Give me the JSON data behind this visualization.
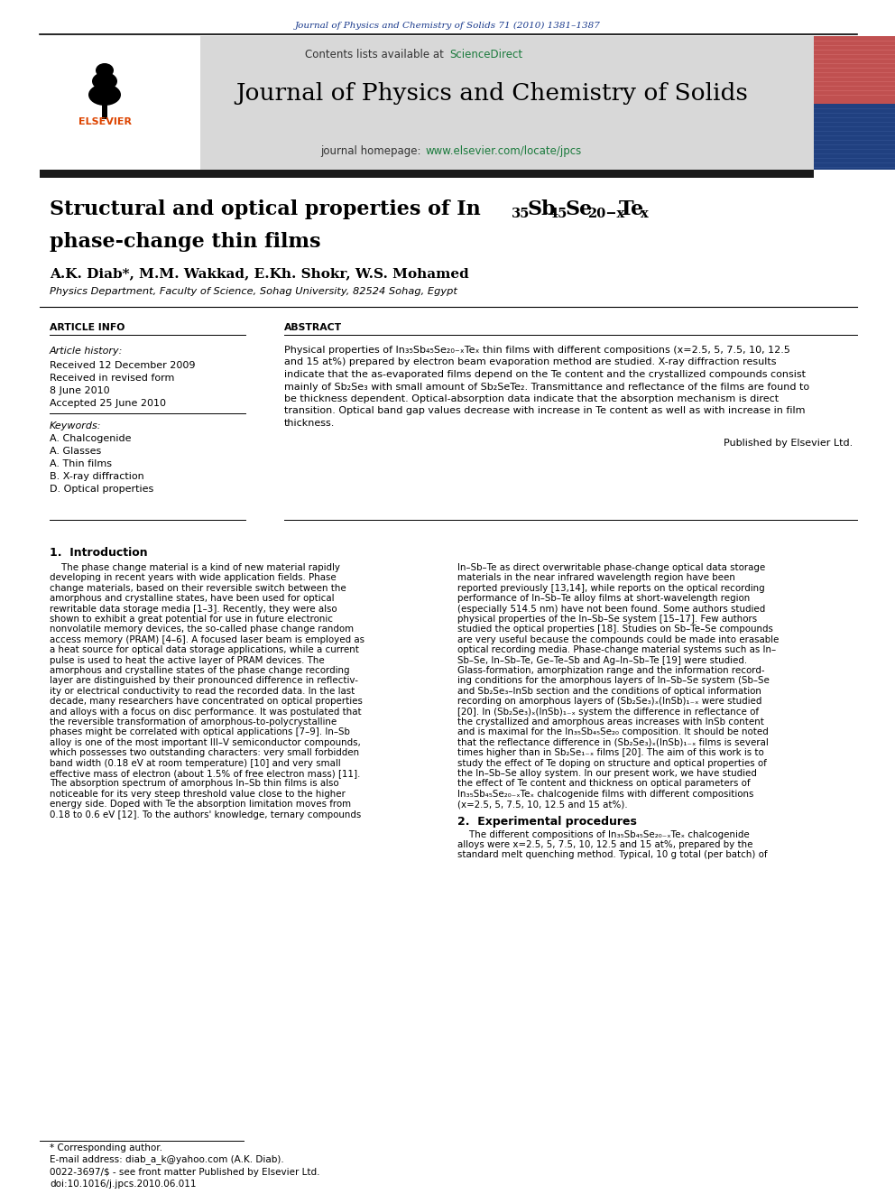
{
  "fig_width": 9.92,
  "fig_height": 13.23,
  "dpi": 100,
  "bg_color": "#ffffff",
  "journal_ref": "Journal of Physics and Chemistry of Solids 71 (2010) 1381–1387",
  "journal_ref_color": "#1a3a8c",
  "contents_text": "Contents lists available at ",
  "sciencedirect_text": "ScienceDirect",
  "sciencedirect_color": "#1a7a3c",
  "journal_title": "Journal of Physics and Chemistry of Solids",
  "journal_homepage_text": "journal homepage: ",
  "journal_homepage_url": "www.elsevier.com/locate/jpcs",
  "journal_homepage_color": "#1a7a3c",
  "header_bg": "#d8d8d8",
  "thick_bar_color": "#1a1a1a",
  "paper_title_line2": "phase-change thin films",
  "authors": "A.K. Diab*, M.M. Wakkad, E.Kh. Shokr, W.S. Mohamed",
  "affiliation": "Physics Department, Faculty of Science, Sohag University, 82524 Sohag, Egypt",
  "article_info_label": "ARTICLE INFO",
  "abstract_label": "ABSTRACT",
  "article_history_label": "Article history:",
  "received_1": "Received 12 December 2009",
  "received_revised": "Received in revised form",
  "revised_date": "8 June 2010",
  "accepted": "Accepted 25 June 2010",
  "keywords_label": "Keywords:",
  "keywords": [
    "A. Chalcogenide",
    "A. Glasses",
    "A. Thin films",
    "B. X-ray diffraction",
    "D. Optical properties"
  ],
  "published_by": "Published by Elsevier Ltd.",
  "section1_title": "1.  Introduction",
  "section2_title": "2.  Experimental procedures",
  "footnote_star": "* Corresponding author.",
  "footnote_email": "E-mail address: diab_a_k@yahoo.com (A.K. Diab).",
  "footnote_issn": "0022-3697/$ - see front matter Published by Elsevier Ltd.",
  "footnote_doi": "doi:10.1016/j.jpcs.2010.06.011"
}
